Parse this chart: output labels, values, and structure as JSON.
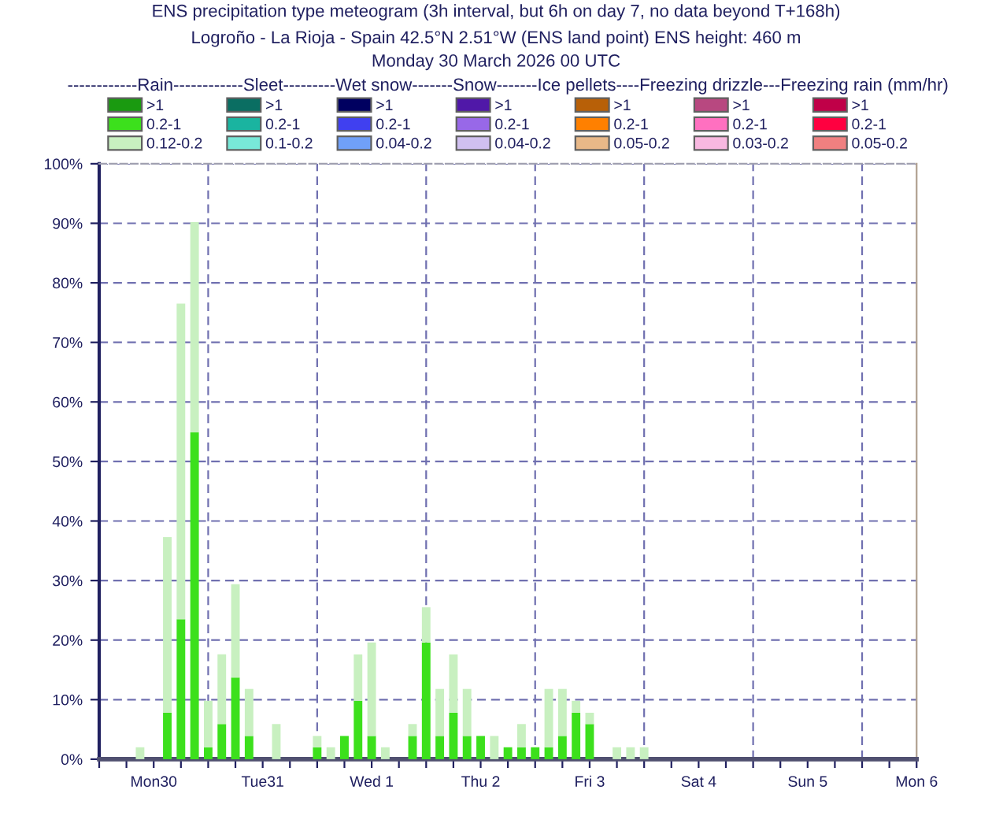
{
  "chart_data": {
    "type": "bar",
    "stacked": true,
    "title": "ENS precipitation type meteogram (3h interval, but 6h on day 7, no data beyond T+168h)",
    "subtitle": "Logroño - La Rioja - Spain 42.5°N 2.51°W (ENS land point) ENS height: 460 m\nMonday 30 March 2026 00 UTC",
    "legend_title": "------------Rain------------Sleet---------Wet snow-------Snow-------Ice pellets----Freezing drizzle---Freezing rain (mm/hr)",
    "legend": "top",
    "grid": true,
    "categories": [
      null,
      null,
      null,
      null,
      "Mon30",
      null,
      null,
      null,
      null,
      null,
      null,
      null,
      "Tue31",
      null,
      null,
      null,
      null,
      null,
      null,
      null,
      "Wed 1",
      null,
      null,
      null,
      null,
      null,
      null,
      null,
      "Thu 2",
      null,
      null,
      null,
      null,
      null,
      null,
      null,
      "Fri 3",
      null,
      null,
      null,
      null,
      null,
      null,
      null,
      "Sat 4",
      null,
      null,
      null,
      null,
      null,
      null,
      null,
      "Sun 5",
      null,
      null,
      null,
      null,
      null,
      null,
      null,
      "Mon 6"
    ],
    "ylim": [
      0,
      100
    ],
    "yticks": [
      {
        "value": 0,
        "label": "0%"
      },
      {
        "value": 10,
        "label": "10%"
      },
      {
        "value": 20,
        "label": "20%"
      },
      {
        "value": 30,
        "label": "30%"
      },
      {
        "value": 40,
        "label": "40%"
      },
      {
        "value": 50,
        "label": "50%"
      },
      {
        "value": 60,
        "label": "60%"
      },
      {
        "value": 70,
        "label": "70%"
      },
      {
        "value": 80,
        "label": "80%"
      },
      {
        "value": 90,
        "label": "90%"
      },
      {
        "value": 100,
        "label": "100%"
      }
    ],
    "series": [
      {
        "name": ">1",
        "color": "#1a9a10",
        "values": [
          null,
          null,
          null,
          null,
          null,
          null,
          null,
          null,
          null,
          null,
          null,
          null,
          null,
          null,
          null,
          null,
          null,
          null,
          null,
          null,
          null,
          null,
          null,
          null,
          null,
          null,
          null,
          null,
          null,
          null,
          null,
          null,
          null,
          null,
          null,
          null,
          null,
          null,
          null,
          null,
          null,
          null,
          null,
          null,
          null,
          null,
          null,
          null,
          null,
          null,
          null,
          null,
          null,
          null,
          null,
          null,
          null,
          null,
          null,
          null,
          null
        ]
      },
      {
        "name": "0.2-1",
        "color": "#3ce01c",
        "values": [
          null,
          null,
          null,
          null,
          null,
          7.8,
          23.5,
          54.9,
          2,
          5.9,
          13.7,
          3.9,
          null,
          null,
          null,
          null,
          2,
          null,
          3.9,
          9.8,
          3.9,
          null,
          null,
          3.9,
          19.6,
          3.9,
          7.8,
          3.9,
          3.9,
          null,
          2,
          2,
          2,
          2,
          3.9,
          7.8,
          5.9,
          null,
          null,
          null,
          null,
          null,
          null,
          null,
          null,
          null,
          null,
          null,
          null,
          null,
          null,
          null,
          null,
          null,
          null,
          null,
          null,
          null,
          null,
          null,
          null
        ]
      },
      {
        "name": "0.12-0.2",
        "color": "#c8f0c0",
        "values": [
          null,
          null,
          null,
          2,
          null,
          29.5,
          53,
          35.3,
          7.8,
          11.7,
          15.7,
          7.9,
          null,
          5.9,
          null,
          null,
          1.9,
          2,
          null,
          7.8,
          15.7,
          2,
          null,
          2,
          5.9,
          7.9,
          9.8,
          7.9,
          null,
          3.9,
          null,
          3.9,
          null,
          9.8,
          7.9,
          2,
          1.9,
          null,
          2,
          2,
          2,
          null,
          null,
          null,
          null,
          null,
          null,
          null,
          null,
          null,
          null,
          null,
          null,
          null,
          null,
          null,
          null,
          null,
          null,
          null,
          null
        ]
      },
      {
        "name": ">1",
        "color": "#0a6e62",
        "values": [
          null,
          null,
          null,
          null,
          null,
          null,
          null,
          null,
          null,
          null,
          null,
          null,
          null,
          null,
          null,
          null,
          null,
          null,
          null,
          null,
          null,
          null,
          null,
          null,
          null,
          null,
          null,
          null,
          null,
          null,
          null,
          null,
          null,
          null,
          null,
          null,
          null,
          null,
          null,
          null,
          null,
          null,
          null,
          null,
          null,
          null,
          null,
          null,
          null,
          null,
          null,
          null,
          null,
          null,
          null,
          null,
          null,
          null,
          null,
          null,
          null
        ]
      },
      {
        "name": "0.2-1",
        "color": "#1ab4a0",
        "values": [
          null,
          null,
          null,
          null,
          null,
          null,
          null,
          null,
          null,
          null,
          null,
          null,
          null,
          null,
          null,
          null,
          null,
          null,
          null,
          null,
          null,
          null,
          null,
          null,
          null,
          null,
          null,
          null,
          null,
          null,
          null,
          null,
          null,
          null,
          null,
          null,
          null,
          null,
          null,
          null,
          null,
          null,
          null,
          null,
          null,
          null,
          null,
          null,
          null,
          null,
          null,
          null,
          null,
          null,
          null,
          null,
          null,
          null,
          null,
          null,
          null
        ]
      },
      {
        "name": "0.1-0.2",
        "color": "#78e8d8",
        "values": [
          null,
          null,
          null,
          null,
          null,
          null,
          null,
          null,
          null,
          null,
          null,
          null,
          null,
          null,
          null,
          null,
          null,
          null,
          null,
          null,
          null,
          null,
          null,
          null,
          null,
          null,
          null,
          null,
          null,
          null,
          null,
          null,
          null,
          null,
          null,
          null,
          null,
          null,
          null,
          null,
          null,
          null,
          null,
          null,
          null,
          null,
          null,
          null,
          null,
          null,
          null,
          null,
          null,
          null,
          null,
          null,
          null,
          null,
          null,
          null,
          null
        ]
      },
      {
        "name": ">1",
        "color": "#000060",
        "values": [
          null,
          null,
          null,
          null,
          null,
          null,
          null,
          null,
          null,
          null,
          null,
          null,
          null,
          null,
          null,
          null,
          null,
          null,
          null,
          null,
          null,
          null,
          null,
          null,
          null,
          null,
          null,
          null,
          null,
          null,
          null,
          null,
          null,
          null,
          null,
          null,
          null,
          null,
          null,
          null,
          null,
          null,
          null,
          null,
          null,
          null,
          null,
          null,
          null,
          null,
          null,
          null,
          null,
          null,
          null,
          null,
          null,
          null,
          null,
          null,
          null
        ]
      },
      {
        "name": "0.2-1",
        "color": "#4040f0",
        "values": [
          null,
          null,
          null,
          null,
          null,
          null,
          null,
          null,
          null,
          null,
          null,
          null,
          null,
          null,
          null,
          null,
          null,
          null,
          null,
          null,
          null,
          null,
          null,
          null,
          null,
          null,
          null,
          null,
          null,
          null,
          null,
          null,
          null,
          null,
          null,
          null,
          null,
          null,
          null,
          null,
          null,
          null,
          null,
          null,
          null,
          null,
          null,
          null,
          null,
          null,
          null,
          null,
          null,
          null,
          null,
          null,
          null,
          null,
          null,
          null,
          null
        ]
      },
      {
        "name": "0.04-0.2",
        "color": "#70a0f8",
        "values": [
          null,
          null,
          null,
          null,
          null,
          null,
          null,
          null,
          null,
          null,
          null,
          null,
          null,
          null,
          null,
          null,
          null,
          null,
          null,
          null,
          null,
          null,
          null,
          null,
          null,
          null,
          null,
          null,
          null,
          null,
          null,
          null,
          null,
          null,
          null,
          null,
          null,
          null,
          null,
          null,
          null,
          null,
          null,
          null,
          null,
          null,
          null,
          null,
          null,
          null,
          null,
          null,
          null,
          null,
          null,
          null,
          null,
          null,
          null,
          null,
          null
        ]
      },
      {
        "name": ">1",
        "color": "#5018a8",
        "values": [
          null,
          null,
          null,
          null,
          null,
          null,
          null,
          null,
          null,
          null,
          null,
          null,
          null,
          null,
          null,
          null,
          null,
          null,
          null,
          null,
          null,
          null,
          null,
          null,
          null,
          null,
          null,
          null,
          null,
          null,
          null,
          null,
          null,
          null,
          null,
          null,
          null,
          null,
          null,
          null,
          null,
          null,
          null,
          null,
          null,
          null,
          null,
          null,
          null,
          null,
          null,
          null,
          null,
          null,
          null,
          null,
          null,
          null,
          null,
          null,
          null
        ]
      },
      {
        "name": "0.2-1",
        "color": "#9868e8",
        "values": [
          null,
          null,
          null,
          null,
          null,
          null,
          null,
          null,
          null,
          null,
          null,
          null,
          null,
          null,
          null,
          null,
          null,
          null,
          null,
          null,
          null,
          null,
          null,
          null,
          null,
          null,
          null,
          null,
          null,
          null,
          null,
          null,
          null,
          null,
          null,
          null,
          null,
          null,
          null,
          null,
          null,
          null,
          null,
          null,
          null,
          null,
          null,
          null,
          null,
          null,
          null,
          null,
          null,
          null,
          null,
          null,
          null,
          null,
          null,
          null,
          null
        ]
      },
      {
        "name": "0.04-0.2",
        "color": "#d0c0f0",
        "values": [
          null,
          null,
          null,
          null,
          null,
          null,
          null,
          null,
          null,
          null,
          null,
          null,
          null,
          null,
          null,
          null,
          null,
          null,
          null,
          null,
          null,
          null,
          null,
          null,
          null,
          null,
          null,
          null,
          null,
          null,
          null,
          null,
          null,
          null,
          null,
          null,
          null,
          null,
          null,
          null,
          null,
          null,
          null,
          null,
          null,
          null,
          null,
          null,
          null,
          null,
          null,
          null,
          null,
          null,
          null,
          null,
          null,
          null,
          null,
          null,
          null
        ]
      },
      {
        "name": ">1",
        "color": "#b86008",
        "values": [
          null,
          null,
          null,
          null,
          null,
          null,
          null,
          null,
          null,
          null,
          null,
          null,
          null,
          null,
          null,
          null,
          null,
          null,
          null,
          null,
          null,
          null,
          null,
          null,
          null,
          null,
          null,
          null,
          null,
          null,
          null,
          null,
          null,
          null,
          null,
          null,
          null,
          null,
          null,
          null,
          null,
          null,
          null,
          null,
          null,
          null,
          null,
          null,
          null,
          null,
          null,
          null,
          null,
          null,
          null,
          null,
          null,
          null,
          null,
          null,
          null
        ]
      },
      {
        "name": "0.2-1",
        "color": "#ff8000",
        "values": [
          null,
          null,
          null,
          null,
          null,
          null,
          null,
          null,
          null,
          null,
          null,
          null,
          null,
          null,
          null,
          null,
          null,
          null,
          null,
          null,
          null,
          null,
          null,
          null,
          null,
          null,
          null,
          null,
          null,
          null,
          null,
          null,
          null,
          null,
          null,
          null,
          null,
          null,
          null,
          null,
          null,
          null,
          null,
          null,
          null,
          null,
          null,
          null,
          null,
          null,
          null,
          null,
          null,
          null,
          null,
          null,
          null,
          null,
          null,
          null,
          null
        ]
      },
      {
        "name": "0.05-0.2",
        "color": "#e8b888",
        "values": [
          null,
          null,
          null,
          null,
          null,
          null,
          null,
          null,
          null,
          null,
          null,
          null,
          null,
          null,
          null,
          null,
          null,
          null,
          null,
          null,
          null,
          null,
          null,
          null,
          null,
          null,
          null,
          null,
          null,
          null,
          null,
          null,
          null,
          null,
          null,
          null,
          null,
          null,
          null,
          null,
          null,
          null,
          null,
          null,
          null,
          null,
          null,
          null,
          null,
          null,
          null,
          null,
          null,
          null,
          null,
          null,
          null,
          null,
          null,
          null,
          null
        ]
      },
      {
        "name": ">1",
        "color": "#b84880",
        "values": [
          null,
          null,
          null,
          null,
          null,
          null,
          null,
          null,
          null,
          null,
          null,
          null,
          null,
          null,
          null,
          null,
          null,
          null,
          null,
          null,
          null,
          null,
          null,
          null,
          null,
          null,
          null,
          null,
          null,
          null,
          null,
          null,
          null,
          null,
          null,
          null,
          null,
          null,
          null,
          null,
          null,
          null,
          null,
          null,
          null,
          null,
          null,
          null,
          null,
          null,
          null,
          null,
          null,
          null,
          null,
          null,
          null,
          null,
          null,
          null,
          null
        ]
      },
      {
        "name": "0.2-1",
        "color": "#ff70c0",
        "values": [
          null,
          null,
          null,
          null,
          null,
          null,
          null,
          null,
          null,
          null,
          null,
          null,
          null,
          null,
          null,
          null,
          null,
          null,
          null,
          null,
          null,
          null,
          null,
          null,
          null,
          null,
          null,
          null,
          null,
          null,
          null,
          null,
          null,
          null,
          null,
          null,
          null,
          null,
          null,
          null,
          null,
          null,
          null,
          null,
          null,
          null,
          null,
          null,
          null,
          null,
          null,
          null,
          null,
          null,
          null,
          null,
          null,
          null,
          null,
          null,
          null
        ]
      },
      {
        "name": "0.03-0.2",
        "color": "#f8b8e0",
        "values": [
          null,
          null,
          null,
          null,
          null,
          null,
          null,
          null,
          null,
          null,
          null,
          null,
          null,
          null,
          null,
          null,
          null,
          null,
          null,
          null,
          null,
          null,
          null,
          null,
          null,
          null,
          null,
          null,
          null,
          null,
          null,
          null,
          null,
          null,
          null,
          null,
          null,
          null,
          null,
          null,
          null,
          null,
          null,
          null,
          null,
          null,
          null,
          null,
          null,
          null,
          null,
          null,
          null,
          null,
          null,
          null,
          null,
          null,
          null,
          null,
          null
        ]
      },
      {
        "name": ">1",
        "color": "#c00048",
        "values": [
          null,
          null,
          null,
          null,
          null,
          null,
          null,
          null,
          null,
          null,
          null,
          null,
          null,
          null,
          null,
          null,
          null,
          null,
          null,
          null,
          null,
          null,
          null,
          null,
          null,
          null,
          null,
          null,
          null,
          null,
          null,
          null,
          null,
          null,
          null,
          null,
          null,
          null,
          null,
          null,
          null,
          null,
          null,
          null,
          null,
          null,
          null,
          null,
          null,
          null,
          null,
          null,
          null,
          null,
          null,
          null,
          null,
          null,
          null,
          null,
          null
        ]
      },
      {
        "name": "0.2-1",
        "color": "#ff0040",
        "values": [
          null,
          null,
          null,
          null,
          null,
          null,
          null,
          null,
          null,
          null,
          null,
          null,
          null,
          null,
          null,
          null,
          null,
          null,
          null,
          null,
          null,
          null,
          null,
          null,
          null,
          null,
          null,
          null,
          null,
          null,
          null,
          null,
          null,
          null,
          null,
          null,
          null,
          null,
          null,
          null,
          null,
          null,
          null,
          null,
          null,
          null,
          null,
          null,
          null,
          null,
          null,
          null,
          null,
          null,
          null,
          null,
          null,
          null,
          null,
          null,
          null
        ]
      },
      {
        "name": "0.05-0.2",
        "color": "#f08080",
        "values": [
          null,
          null,
          null,
          null,
          null,
          null,
          null,
          null,
          null,
          null,
          null,
          null,
          null,
          null,
          null,
          null,
          null,
          null,
          null,
          null,
          null,
          null,
          null,
          null,
          null,
          null,
          null,
          null,
          null,
          null,
          null,
          null,
          null,
          null,
          null,
          null,
          null,
          null,
          null,
          null,
          null,
          null,
          null,
          null,
          null,
          null,
          null,
          null,
          null,
          null,
          null,
          null,
          null,
          null,
          null,
          null,
          null,
          null,
          null,
          null,
          null
        ]
      }
    ]
  }
}
